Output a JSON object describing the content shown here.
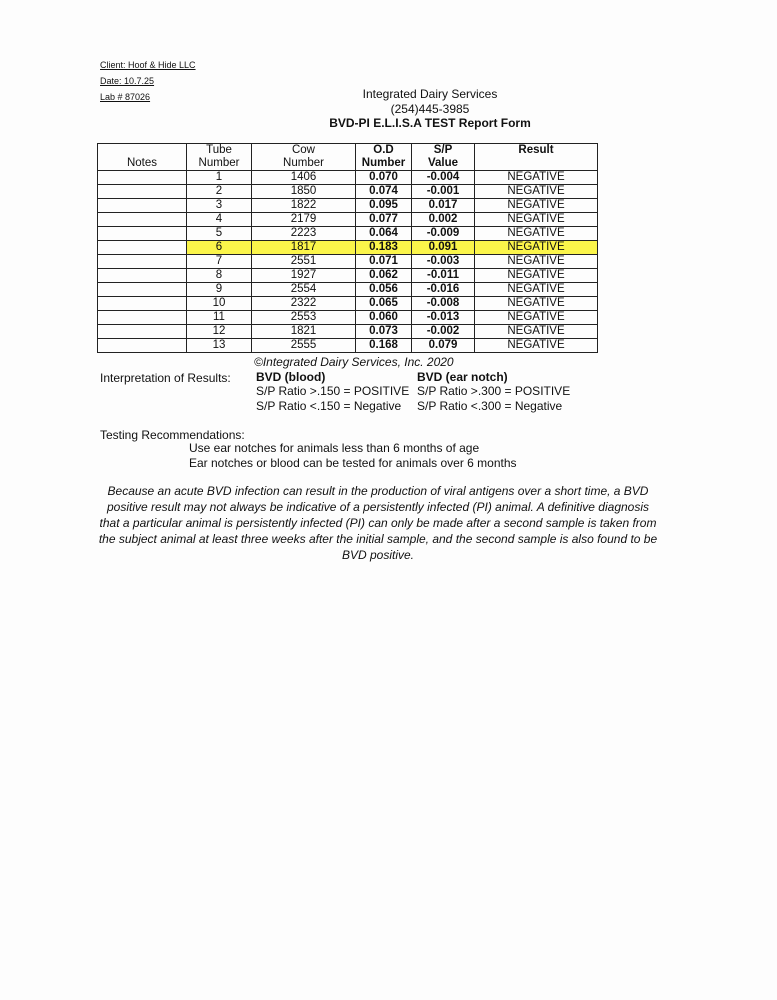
{
  "header": {
    "client": "Client: Hoof & Hide LLC",
    "date": "Date: 10.7.25",
    "lab": "Lab # 87026",
    "company": "Integrated Dairy Services",
    "phone": "(254)445-3985",
    "form_title": "BVD-PI  E.L.I.S.A TEST Report Form"
  },
  "table": {
    "columns": [
      "Notes",
      "Tube\nNumber",
      "Cow\nNumber",
      "O.D\nNumber",
      "S/P\nValue",
      "Result"
    ],
    "rows": [
      {
        "tube": "1",
        "cow": "1406",
        "od": "0.070",
        "sp": "-0.004",
        "result": "NEGATIVE"
      },
      {
        "tube": "2",
        "cow": "1850",
        "od": "0.074",
        "sp": "-0.001",
        "result": "NEGATIVE"
      },
      {
        "tube": "3",
        "cow": "1822",
        "od": "0.095",
        "sp": "0.017",
        "result": "NEGATIVE"
      },
      {
        "tube": "4",
        "cow": "2179",
        "od": "0.077",
        "sp": "0.002",
        "result": "NEGATIVE"
      },
      {
        "tube": "5",
        "cow": "2223",
        "od": "0.064",
        "sp": "-0.009",
        "result": "NEGATIVE"
      },
      {
        "tube": "6",
        "cow": "1817",
        "od": "0.183",
        "sp": "0.091",
        "result": "NEGATIVE",
        "highlighted": true
      },
      {
        "tube": "7",
        "cow": "2551",
        "od": "0.071",
        "sp": "-0.003",
        "result": "NEGATIVE"
      },
      {
        "tube": "8",
        "cow": "1927",
        "od": "0.062",
        "sp": "-0.011",
        "result": "NEGATIVE"
      },
      {
        "tube": "9",
        "cow": "2554",
        "od": "0.056",
        "sp": "-0.016",
        "result": "NEGATIVE"
      },
      {
        "tube": "10",
        "cow": "2322",
        "od": "0.065",
        "sp": "-0.008",
        "result": "NEGATIVE"
      },
      {
        "tube": "11",
        "cow": "2553",
        "od": "0.060",
        "sp": "-0.013",
        "result": "NEGATIVE"
      },
      {
        "tube": "12",
        "cow": "1821",
        "od": "0.073",
        "sp": "-0.002",
        "result": "NEGATIVE"
      },
      {
        "tube": "13",
        "cow": "2555",
        "od": "0.168",
        "sp": "0.079",
        "result": "NEGATIVE"
      }
    ],
    "highlight_color": "#fbf54a"
  },
  "copyright": "©Integrated Dairy Services, Inc. 2020",
  "interpretation": {
    "label": "Interpretation of Results:",
    "blood": {
      "title": "BVD (blood)",
      "pos": "S/P Ratio >.150 = POSITIVE",
      "neg": "S/P Ratio <.150 = Negative"
    },
    "ear": {
      "title": "BVD (ear notch)",
      "pos": "S/P Ratio >.300 = POSITIVE",
      "neg": "S/P Ratio <.300 = Negative"
    }
  },
  "recommendations": {
    "label": "Testing Recommendations:",
    "line1": "Use ear notches for animals less than 6 months of age",
    "line2": "Ear notches or blood can be tested for animals over 6 months"
  },
  "disclaimer": "Because an acute BVD infection can result in the production of viral antigens over a short time, a BVD positive result may not always be indicative of a persistently infected (PI) animal.  A definitive diagnosis that a particular animal is persistently infected (PI) can only be made after a second sample is taken from the subject animal at least three weeks after the initial sample, and the second sample is also found to be BVD positive."
}
